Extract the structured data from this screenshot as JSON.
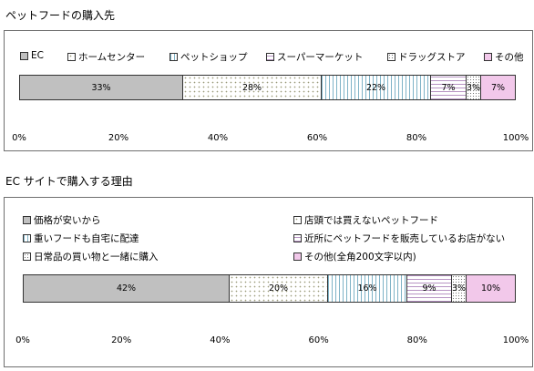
{
  "chart_data": [
    {
      "type": "bar",
      "orientation": "horizontal-stacked-100",
      "title": "ペットフードの購入先",
      "series": [
        {
          "name": "EC",
          "value": 33,
          "label": "33%",
          "pattern": "gray"
        },
        {
          "name": "ホームセンター",
          "value": 28,
          "label": "28%",
          "pattern": "dots"
        },
        {
          "name": "ペットショップ",
          "value": 22,
          "label": "22%",
          "pattern": "vlines"
        },
        {
          "name": "スーパーマーケット",
          "value": 7,
          "label": "7%",
          "pattern": "hlines"
        },
        {
          "name": "ドラッグストア",
          "value": 3,
          "label": "3%",
          "pattern": "check"
        },
        {
          "name": "その他",
          "value": 7,
          "label": "7%",
          "pattern": "pink"
        }
      ],
      "xlim": [
        0,
        100
      ],
      "ticks": [
        "0%",
        "20%",
        "40%",
        "60%",
        "80%",
        "100%"
      ],
      "legend": "top"
    },
    {
      "type": "bar",
      "orientation": "horizontal-stacked-100",
      "title": "EC サイトで購入する理由",
      "series": [
        {
          "name": "価格が安いから",
          "value": 42,
          "label": "42%",
          "pattern": "gray"
        },
        {
          "name": "店頭では買えないペットフード",
          "value": 20,
          "label": "20%",
          "pattern": "dots"
        },
        {
          "name": "重いフードも自宅に配達",
          "value": 16,
          "label": "16%",
          "pattern": "vlines"
        },
        {
          "name": "近所にペットフードを販売しているお店がない",
          "value": 9,
          "label": "9%",
          "pattern": "hlines"
        },
        {
          "name": "日常品の買い物と一緒に購入",
          "value": 3,
          "label": "3%",
          "pattern": "check"
        },
        {
          "name": "その他(全角200文字以内)",
          "value": 10,
          "label": "10%",
          "pattern": "pink"
        }
      ],
      "xlim": [
        0,
        100
      ],
      "ticks": [
        "0%",
        "20%",
        "40%",
        "60%",
        "80%",
        "100%"
      ],
      "legend": "top"
    }
  ],
  "colors": {
    "gray": "#c0c0c0",
    "pink": "#f2c8ea",
    "border": "#6f6f6f"
  }
}
